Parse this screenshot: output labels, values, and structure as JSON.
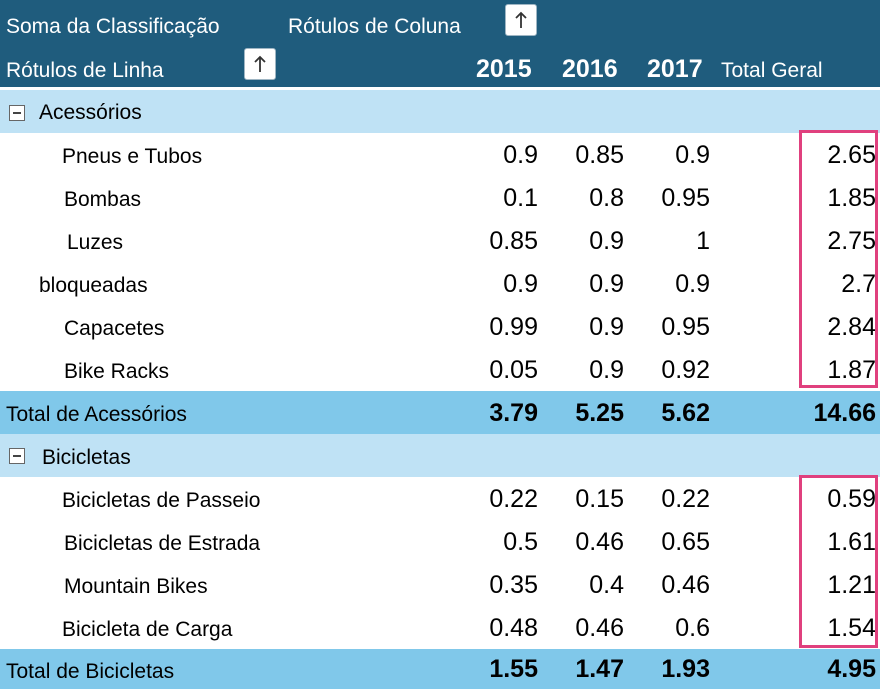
{
  "header": {
    "values_label": "Soma da Classificação",
    "column_labels": "Rótulos de Coluna",
    "row_labels": "Rótulos de Linha",
    "years": [
      "2015",
      "2016",
      "2017"
    ],
    "grand_total": "Total Geral"
  },
  "groups": [
    {
      "name": "Acessórios",
      "items": [
        {
          "label": "Pneus e Tubos",
          "v2015": "0.9",
          "v2016": "0.85",
          "v2017": "0.9",
          "total": "2.65"
        },
        {
          "label": "Bombas",
          "v2015": "0.1",
          "v2016": "0.8",
          "v2017": "0.95",
          "total": "1.85"
        },
        {
          "label": "Luzes",
          "v2015": "0.85",
          "v2016": "0.9",
          "v2017": "1",
          "total": "2.75"
        },
        {
          "label": "bloqueadas",
          "v2015": "0.9",
          "v2016": "0.9",
          "v2017": "0.9",
          "total": "2.7"
        },
        {
          "label": "Capacetes",
          "v2015": "0.99",
          "v2016": "0.9",
          "v2017": "0.95",
          "total": "2.84"
        },
        {
          "label": "Bike Racks",
          "v2015": "0.05",
          "v2016": "0.9",
          "v2017": "0.92",
          "total": "1.87"
        }
      ],
      "total": {
        "label": "Total de Acessórios",
        "v2015": "3.79",
        "v2016": "5.25",
        "v2017": "5.62",
        "total": "14.66"
      }
    },
    {
      "name": "Bicicletas",
      "items": [
        {
          "label": "Bicicletas de Passeio",
          "v2015": "0.22",
          "v2016": "0.15",
          "v2017": "0.22",
          "total": "0.59"
        },
        {
          "label": "Bicicletas de Estrada",
          "v2015": "0.5",
          "v2016": "0.46",
          "v2017": "0.65",
          "total": "1.61"
        },
        {
          "label": "Mountain Bikes",
          "v2015": "0.35",
          "v2016": "0.4",
          "v2017": "0.46",
          "total": "1.21"
        },
        {
          "label": "Bicicleta de Carga",
          "v2015": "0.48",
          "v2016": "0.46",
          "v2017": "0.6",
          "total": "1.54"
        }
      ],
      "total": {
        "label": "Total de Bicicletas",
        "v2015": "1.55",
        "v2016": "1.47",
        "v2017": "1.93",
        "total": "4.95"
      }
    }
  ],
  "colors": {
    "header_bg": "#1f5c7d",
    "category_bg": "#bfe2f5",
    "total_bg": "#80c8ea",
    "highlight_border": "#e0407e"
  },
  "icons": {
    "sort_button": "arrow-up-icon",
    "collapse_button": "minus-icon"
  }
}
